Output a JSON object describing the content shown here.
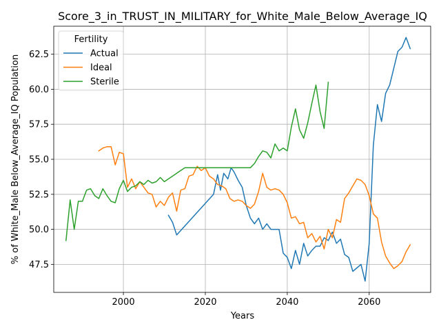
{
  "chart_data": {
    "type": "line",
    "title": "Score_3_in_TRUST_IN_MILITARY_for_White_Male_Below_Average_IQ",
    "xlabel": "Years",
    "ylabel": "% of White_Male Below_Average_IQ Population",
    "xlim": [
      1983,
      2075
    ],
    "ylim": [
      45.5,
      64.5
    ],
    "xticks": [
      2000,
      2020,
      2040,
      2060
    ],
    "yticks": [
      47.5,
      50.0,
      52.5,
      55.0,
      57.5,
      60.0,
      62.5
    ],
    "ytick_labels": [
      "47.5",
      "50.0",
      "52.5",
      "55.0",
      "57.5",
      "60.0",
      "62.5"
    ],
    "grid": true,
    "legend": {
      "title": "Fertility",
      "placement": "top-left"
    },
    "series": [
      {
        "name": "Actual",
        "color": "#1f77b4",
        "points": [
          [
            2011,
            51.0
          ],
          [
            2012,
            50.5
          ],
          [
            2013,
            49.6
          ],
          [
            2022,
            52.5
          ],
          [
            2023,
            53.9
          ],
          [
            2023.7,
            52.8
          ],
          [
            2024.5,
            54.0
          ],
          [
            2025.5,
            53.6
          ],
          [
            2026.3,
            54.4
          ],
          [
            2027,
            54.1
          ],
          [
            2028,
            53.5
          ],
          [
            2029,
            53.0
          ],
          [
            2030,
            51.7
          ],
          [
            2031,
            50.8
          ],
          [
            2032,
            50.4
          ],
          [
            2033,
            50.8
          ],
          [
            2034,
            50.0
          ],
          [
            2035,
            50.4
          ],
          [
            2036,
            50.0
          ],
          [
            2038,
            50.0
          ],
          [
            2039,
            48.3
          ],
          [
            2040,
            48.0
          ],
          [
            2041,
            47.2
          ],
          [
            2042,
            48.5
          ],
          [
            2043,
            47.5
          ],
          [
            2044,
            49.0
          ],
          [
            2045,
            48.1
          ],
          [
            2046,
            48.5
          ],
          [
            2047,
            48.8
          ],
          [
            2048,
            48.8
          ],
          [
            2049,
            49.4
          ],
          [
            2050,
            49.2
          ],
          [
            2051,
            49.8
          ],
          [
            2052,
            49.0
          ],
          [
            2053,
            49.3
          ],
          [
            2054,
            48.2
          ],
          [
            2055,
            48.0
          ],
          [
            2056,
            47.0
          ],
          [
            2058,
            47.5
          ],
          [
            2059,
            46.3
          ],
          [
            2060,
            49.0
          ],
          [
            2061,
            56.0
          ],
          [
            2062,
            58.9
          ],
          [
            2063,
            57.7
          ],
          [
            2064,
            59.7
          ],
          [
            2065,
            60.3
          ],
          [
            2066,
            61.5
          ],
          [
            2067,
            62.7
          ],
          [
            2068,
            63.0
          ],
          [
            2069,
            63.7
          ],
          [
            2070,
            62.9
          ]
        ]
      },
      {
        "name": "Ideal",
        "color": "#ff7f0e",
        "points": [
          [
            1994,
            55.6
          ],
          [
            1995,
            55.8
          ],
          [
            1996,
            55.9
          ],
          [
            1997,
            55.9
          ],
          [
            1998,
            54.6
          ],
          [
            1999,
            55.5
          ],
          [
            2000,
            55.4
          ],
          [
            2001,
            53.0
          ],
          [
            2002,
            53.6
          ],
          [
            2003,
            52.9
          ],
          [
            2004,
            53.4
          ],
          [
            2005,
            53.0
          ],
          [
            2006,
            52.6
          ],
          [
            2007,
            52.5
          ],
          [
            2008,
            51.6
          ],
          [
            2009,
            52.0
          ],
          [
            2010,
            51.7
          ],
          [
            2011,
            52.3
          ],
          [
            2012,
            52.6
          ],
          [
            2013,
            51.3
          ],
          [
            2014,
            52.8
          ],
          [
            2015,
            52.9
          ],
          [
            2016,
            53.8
          ],
          [
            2017,
            53.9
          ],
          [
            2018,
            54.5
          ],
          [
            2019,
            54.2
          ],
          [
            2020,
            54.4
          ],
          [
            2021,
            53.8
          ],
          [
            2022,
            53.6
          ],
          [
            2023,
            53.2
          ],
          [
            2024,
            53.1
          ],
          [
            2025,
            52.9
          ],
          [
            2026,
            52.2
          ],
          [
            2027,
            52.0
          ],
          [
            2028,
            52.1
          ],
          [
            2029,
            52.0
          ],
          [
            2030,
            51.7
          ],
          [
            2031,
            51.5
          ],
          [
            2032,
            51.8
          ],
          [
            2033,
            52.7
          ],
          [
            2034,
            54.0
          ],
          [
            2035,
            53.0
          ],
          [
            2036,
            52.8
          ],
          [
            2037,
            52.9
          ],
          [
            2038,
            52.8
          ],
          [
            2039,
            52.5
          ],
          [
            2040,
            51.9
          ],
          [
            2041,
            50.8
          ],
          [
            2042,
            50.9
          ],
          [
            2043,
            50.4
          ],
          [
            2044,
            50.5
          ],
          [
            2045,
            49.4
          ],
          [
            2046,
            49.7
          ],
          [
            2047,
            49.1
          ],
          [
            2048,
            49.5
          ],
          [
            2049,
            48.6
          ],
          [
            2050,
            50.0
          ],
          [
            2051,
            49.4
          ],
          [
            2052,
            50.7
          ],
          [
            2053,
            50.5
          ],
          [
            2054,
            52.2
          ],
          [
            2055,
            52.6
          ],
          [
            2056,
            53.1
          ],
          [
            2057,
            53.6
          ],
          [
            2058,
            53.5
          ],
          [
            2059,
            53.2
          ],
          [
            2060,
            52.4
          ],
          [
            2061,
            51.1
          ],
          [
            2062,
            50.8
          ],
          [
            2063,
            49.1
          ],
          [
            2064,
            48.1
          ],
          [
            2065,
            47.6
          ],
          [
            2066,
            47.2
          ],
          [
            2067,
            47.4
          ],
          [
            2068,
            47.7
          ],
          [
            2069,
            48.4
          ],
          [
            2070,
            48.9
          ]
        ]
      },
      {
        "name": "Sterile",
        "color": "#2ca02c",
        "points": [
          [
            1986,
            49.2
          ],
          [
            1987,
            52.1
          ],
          [
            1988,
            50.0
          ],
          [
            1989,
            52.0
          ],
          [
            1990,
            52.0
          ],
          [
            1991,
            52.8
          ],
          [
            1992,
            52.9
          ],
          [
            1993,
            52.4
          ],
          [
            1994,
            52.2
          ],
          [
            1995,
            52.9
          ],
          [
            1996,
            52.4
          ],
          [
            1997,
            52.0
          ],
          [
            1998,
            51.9
          ],
          [
            1999,
            52.9
          ],
          [
            2000,
            53.5
          ],
          [
            2001,
            52.7
          ],
          [
            2002,
            53.0
          ],
          [
            2003,
            53.1
          ],
          [
            2004,
            53.4
          ],
          [
            2005,
            53.2
          ],
          [
            2006,
            53.5
          ],
          [
            2007,
            53.3
          ],
          [
            2008,
            53.4
          ],
          [
            2009,
            53.7
          ],
          [
            2010,
            53.4
          ],
          [
            2011,
            53.6
          ],
          [
            2012,
            53.8
          ],
          [
            2013,
            54.0
          ],
          [
            2014,
            54.2
          ],
          [
            2015,
            54.4
          ],
          [
            2016,
            54.4
          ],
          [
            2017,
            54.4
          ],
          [
            2018,
            54.4
          ],
          [
            2031,
            54.4
          ],
          [
            2032,
            54.7
          ],
          [
            2033,
            55.2
          ],
          [
            2034,
            55.6
          ],
          [
            2035,
            55.5
          ],
          [
            2036,
            55.1
          ],
          [
            2037,
            56.1
          ],
          [
            2038,
            55.6
          ],
          [
            2039,
            55.8
          ],
          [
            2040,
            55.6
          ],
          [
            2041,
            57.3
          ],
          [
            2042,
            58.6
          ],
          [
            2043,
            57.1
          ],
          [
            2044,
            56.5
          ],
          [
            2045,
            57.6
          ],
          [
            2046,
            59.0
          ],
          [
            2047,
            60.3
          ],
          [
            2048,
            58.4
          ],
          [
            2049,
            57.2
          ],
          [
            2050,
            60.5
          ]
        ]
      }
    ]
  }
}
